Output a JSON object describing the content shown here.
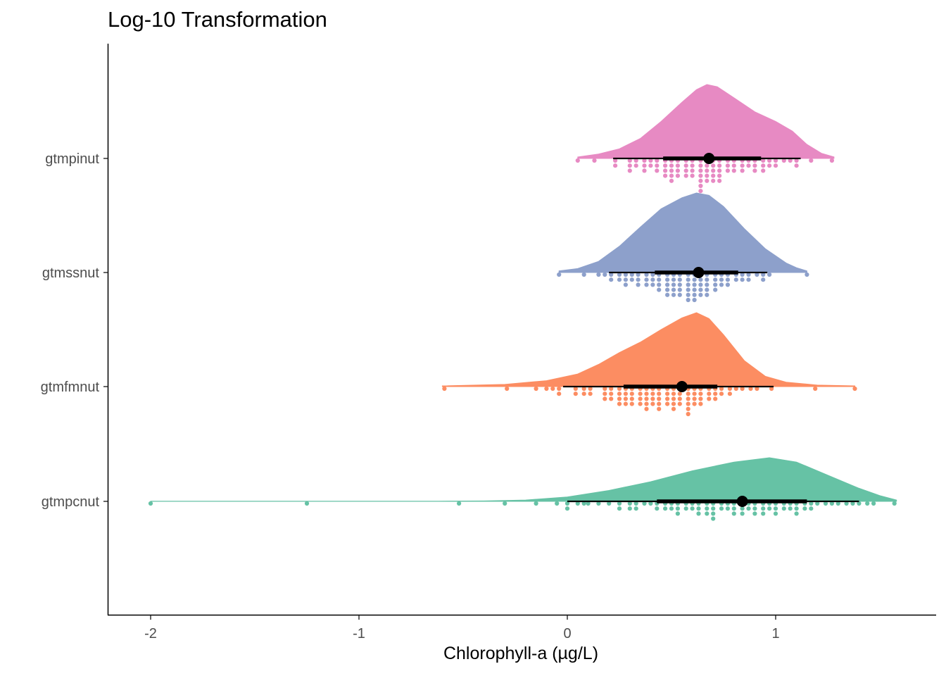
{
  "chart_data": {
    "type": "raincloud",
    "title": "Log-10 Transformation",
    "xlabel": "Chlorophyll-a (µg/L)",
    "ylabel": "",
    "xlim": [
      -2.18,
      1.75
    ],
    "x_ticks": [
      -2,
      -1,
      0,
      1
    ],
    "x_tick_labels": [
      "-2",
      "-1",
      "0",
      "1"
    ],
    "grid": false,
    "legend": "none",
    "categories": [
      "gtmpinut",
      "gtmssnut",
      "gtmfmnut",
      "gtmpcnut"
    ],
    "series": [
      {
        "category": "gtmpinut",
        "color": "#E78AC3",
        "point_color": "#E78AC3",
        "median": 0.68,
        "q1": 0.46,
        "q3": 0.93,
        "interval_low": 0.22,
        "interval_high": 1.12,
        "min": 0.05,
        "max": 1.28,
        "density_peak": 0.67,
        "density": [
          [
            0.05,
            0.02
          ],
          [
            0.15,
            0.06
          ],
          [
            0.25,
            0.13
          ],
          [
            0.35,
            0.27
          ],
          [
            0.45,
            0.5
          ],
          [
            0.55,
            0.76
          ],
          [
            0.62,
            0.93
          ],
          [
            0.67,
            1.0
          ],
          [
            0.72,
            0.97
          ],
          [
            0.8,
            0.82
          ],
          [
            0.9,
            0.63
          ],
          [
            1.0,
            0.5
          ],
          [
            1.08,
            0.37
          ],
          [
            1.15,
            0.19
          ],
          [
            1.22,
            0.07
          ],
          [
            1.28,
            0.02
          ]
        ],
        "dots": [
          0.05,
          0.13,
          0.23,
          0.23,
          0.3,
          0.3,
          0.3,
          0.33,
          0.33,
          0.37,
          0.37,
          0.37,
          0.4,
          0.4,
          0.43,
          0.43,
          0.43,
          0.47,
          0.47,
          0.47,
          0.47,
          0.5,
          0.5,
          0.5,
          0.5,
          0.5,
          0.53,
          0.53,
          0.53,
          0.53,
          0.57,
          0.57,
          0.57,
          0.57,
          0.6,
          0.6,
          0.6,
          0.6,
          0.64,
          0.64,
          0.64,
          0.64,
          0.64,
          0.64,
          0.64,
          0.67,
          0.67,
          0.67,
          0.67,
          0.67,
          0.7,
          0.7,
          0.7,
          0.7,
          0.7,
          0.73,
          0.73,
          0.73,
          0.73,
          0.73,
          0.77,
          0.77,
          0.77,
          0.8,
          0.8,
          0.8,
          0.84,
          0.84,
          0.84,
          0.87,
          0.87,
          0.9,
          0.9,
          0.9,
          0.94,
          0.94,
          0.94,
          0.97,
          0.97,
          1.0,
          1.0,
          1.04,
          1.07,
          1.1,
          1.1,
          1.17,
          1.27
        ]
      },
      {
        "category": "gtmssnut",
        "color": "#8DA0CB",
        "point_color": "#8DA0CB",
        "median": 0.63,
        "q1": 0.42,
        "q3": 0.82,
        "interval_low": 0.2,
        "interval_high": 0.96,
        "min": -0.04,
        "max": 1.15,
        "density_peak": 0.65,
        "density": [
          [
            -0.04,
            0.02
          ],
          [
            0.05,
            0.05
          ],
          [
            0.15,
            0.14
          ],
          [
            0.25,
            0.33
          ],
          [
            0.35,
            0.57
          ],
          [
            0.45,
            0.8
          ],
          [
            0.55,
            0.94
          ],
          [
            0.62,
            1.0
          ],
          [
            0.68,
            0.97
          ],
          [
            0.75,
            0.83
          ],
          [
            0.85,
            0.55
          ],
          [
            0.95,
            0.3
          ],
          [
            1.05,
            0.12
          ],
          [
            1.1,
            0.06
          ],
          [
            1.15,
            0.02
          ]
        ],
        "dots": [
          -0.04,
          0.08,
          0.15,
          0.18,
          0.21,
          0.21,
          0.25,
          0.25,
          0.28,
          0.28,
          0.28,
          0.31,
          0.31,
          0.34,
          0.34,
          0.34,
          0.38,
          0.38,
          0.38,
          0.41,
          0.41,
          0.41,
          0.44,
          0.44,
          0.44,
          0.44,
          0.48,
          0.48,
          0.48,
          0.48,
          0.48,
          0.51,
          0.51,
          0.51,
          0.51,
          0.51,
          0.54,
          0.54,
          0.54,
          0.54,
          0.54,
          0.58,
          0.58,
          0.58,
          0.58,
          0.58,
          0.58,
          0.61,
          0.61,
          0.61,
          0.61,
          0.61,
          0.61,
          0.64,
          0.64,
          0.64,
          0.64,
          0.64,
          0.67,
          0.67,
          0.67,
          0.67,
          0.67,
          0.71,
          0.71,
          0.71,
          0.71,
          0.74,
          0.74,
          0.74,
          0.77,
          0.77,
          0.77,
          0.81,
          0.81,
          0.84,
          0.84,
          0.87,
          0.87,
          0.91,
          0.94,
          0.94,
          0.97,
          1.15
        ]
      },
      {
        "category": "gtmfmnut",
        "color": "#FC8D62",
        "point_color": "#FC8D62",
        "median": 0.55,
        "q1": 0.27,
        "q3": 0.72,
        "interval_low": -0.02,
        "interval_high": 0.99,
        "min": -0.6,
        "max": 1.38,
        "density_peak": 0.61,
        "density": [
          [
            -0.6,
            0.01
          ],
          [
            -0.3,
            0.03
          ],
          [
            -0.1,
            0.08
          ],
          [
            0.05,
            0.17
          ],
          [
            0.15,
            0.3
          ],
          [
            0.25,
            0.46
          ],
          [
            0.35,
            0.6
          ],
          [
            0.45,
            0.77
          ],
          [
            0.55,
            0.93
          ],
          [
            0.62,
            1.0
          ],
          [
            0.68,
            0.92
          ],
          [
            0.75,
            0.7
          ],
          [
            0.85,
            0.35
          ],
          [
            0.95,
            0.14
          ],
          [
            1.05,
            0.06
          ],
          [
            1.2,
            0.02
          ],
          [
            1.38,
            0.01
          ]
        ],
        "dots": [
          -0.59,
          -0.29,
          -0.15,
          -0.1,
          -0.07,
          -0.04,
          -0.04,
          0.04,
          0.04,
          0.08,
          0.08,
          0.11,
          0.11,
          0.18,
          0.18,
          0.18,
          0.21,
          0.21,
          0.21,
          0.25,
          0.25,
          0.25,
          0.25,
          0.28,
          0.28,
          0.28,
          0.28,
          0.31,
          0.31,
          0.31,
          0.31,
          0.35,
          0.35,
          0.35,
          0.35,
          0.38,
          0.38,
          0.38,
          0.38,
          0.38,
          0.41,
          0.41,
          0.41,
          0.41,
          0.44,
          0.44,
          0.44,
          0.44,
          0.44,
          0.48,
          0.48,
          0.48,
          0.48,
          0.51,
          0.51,
          0.51,
          0.51,
          0.51,
          0.54,
          0.54,
          0.54,
          0.54,
          0.58,
          0.58,
          0.58,
          0.58,
          0.58,
          0.58,
          0.61,
          0.61,
          0.61,
          0.61,
          0.64,
          0.64,
          0.64,
          0.64,
          0.68,
          0.68,
          0.68,
          0.71,
          0.71,
          0.71,
          0.74,
          0.74,
          0.78,
          0.78,
          0.81,
          0.84,
          0.88,
          0.91,
          0.98,
          1.19,
          1.38
        ]
      },
      {
        "category": "gtmpcnut",
        "color": "#66C2A5",
        "point_color": "#66C2A5",
        "median": 0.84,
        "q1": 0.43,
        "q3": 1.15,
        "interval_low": 0.0,
        "interval_high": 1.4,
        "min": -2.0,
        "max": 1.58,
        "density_peak": 0.97,
        "density": [
          [
            -2.0,
            0.005
          ],
          [
            -1.9,
            0.005
          ],
          [
            -1.35,
            0.005
          ],
          [
            -1.17,
            0.005
          ],
          [
            -0.62,
            0.005
          ],
          [
            -0.4,
            0.01
          ],
          [
            -0.2,
            0.03
          ],
          [
            0.0,
            0.1
          ],
          [
            0.2,
            0.25
          ],
          [
            0.4,
            0.45
          ],
          [
            0.6,
            0.7
          ],
          [
            0.8,
            0.9
          ],
          [
            0.97,
            1.0
          ],
          [
            1.1,
            0.9
          ],
          [
            1.25,
            0.6
          ],
          [
            1.4,
            0.3
          ],
          [
            1.5,
            0.13
          ],
          [
            1.58,
            0.03
          ]
        ],
        "dots": [
          -2.0,
          -1.25,
          -0.52,
          -0.3,
          -0.15,
          -0.05,
          0.0,
          0.0,
          0.05,
          0.08,
          0.1,
          0.15,
          0.2,
          0.25,
          0.25,
          0.3,
          0.3,
          0.33,
          0.33,
          0.37,
          0.4,
          0.43,
          0.43,
          0.47,
          0.47,
          0.5,
          0.5,
          0.53,
          0.53,
          0.53,
          0.57,
          0.57,
          0.6,
          0.6,
          0.63,
          0.63,
          0.63,
          0.67,
          0.67,
          0.67,
          0.7,
          0.7,
          0.7,
          0.7,
          0.74,
          0.74,
          0.77,
          0.77,
          0.8,
          0.8,
          0.8,
          0.84,
          0.84,
          0.84,
          0.87,
          0.87,
          0.9,
          0.9,
          0.9,
          0.94,
          0.94,
          0.94,
          0.97,
          0.97,
          1.0,
          1.0,
          1.0,
          1.04,
          1.04,
          1.07,
          1.07,
          1.1,
          1.1,
          1.1,
          1.14,
          1.14,
          1.17,
          1.17,
          1.2,
          1.24,
          1.27,
          1.3,
          1.34,
          1.37,
          1.4,
          1.44,
          1.47,
          1.57
        ]
      }
    ]
  }
}
